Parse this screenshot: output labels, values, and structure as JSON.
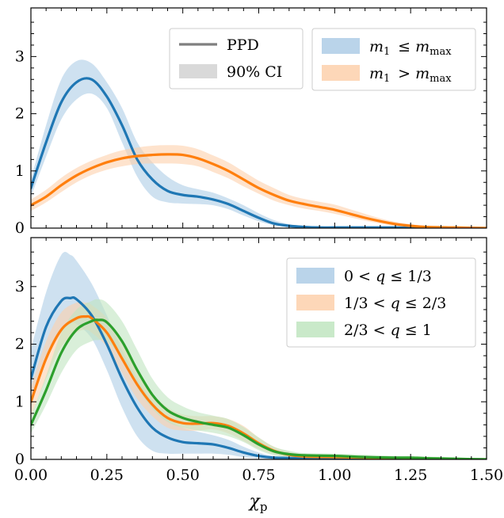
{
  "chart_data": [
    {
      "type": "line",
      "panel": "top",
      "xlim": [
        0,
        1.5
      ],
      "ylim": [
        0,
        3.85
      ],
      "yticks": [
        {
          "v": 0,
          "label": "0"
        },
        {
          "v": 1,
          "label": "1"
        },
        {
          "v": 2,
          "label": "2"
        },
        {
          "v": 3,
          "label": "3"
        }
      ],
      "style_legend": {
        "placement": "top-center",
        "entries": [
          {
            "kind": "line",
            "label": "PPD",
            "color": "#7f7f7f"
          },
          {
            "kind": "band",
            "label": "90% CI",
            "color": "#d9d9d9"
          }
        ]
      },
      "series_legend": {
        "placement": "top-right"
      },
      "series": [
        {
          "name": "m₁ ≤ m_max",
          "color": "#1f77b4",
          "band_color": "#aecde6",
          "x": [
            0,
            0.05,
            0.1,
            0.15,
            0.2,
            0.25,
            0.3,
            0.35,
            0.4,
            0.45,
            0.5,
            0.55,
            0.6,
            0.65,
            0.7,
            0.75,
            0.8,
            0.85,
            0.9,
            0.95,
            1.0,
            1.1,
            1.2,
            1.3,
            1.4,
            1.5
          ],
          "y": [
            0.7,
            1.5,
            2.2,
            2.55,
            2.6,
            2.3,
            1.8,
            1.2,
            0.85,
            0.65,
            0.58,
            0.55,
            0.5,
            0.42,
            0.3,
            0.18,
            0.08,
            0.04,
            0.02,
            0.01,
            0.01,
            0.01,
            0.01,
            0.0,
            0.0,
            0.0
          ],
          "lo": [
            0.55,
            1.25,
            1.9,
            2.25,
            2.35,
            2.1,
            1.5,
            0.9,
            0.55,
            0.45,
            0.43,
            0.42,
            0.4,
            0.33,
            0.22,
            0.12,
            0.05,
            0.02,
            0.01,
            0.0,
            0.0,
            0.0,
            0.0,
            0.0,
            0.0,
            0.0
          ],
          "hi": [
            0.85,
            1.8,
            2.6,
            2.92,
            2.88,
            2.55,
            2.1,
            1.5,
            1.15,
            0.9,
            0.75,
            0.68,
            0.62,
            0.52,
            0.4,
            0.26,
            0.14,
            0.07,
            0.04,
            0.03,
            0.02,
            0.02,
            0.02,
            0.01,
            0.01,
            0.0
          ]
        },
        {
          "name": "m₁ > m_max",
          "color": "#ff7f0e",
          "band_color": "#fdd0ab",
          "x": [
            0,
            0.05,
            0.1,
            0.15,
            0.2,
            0.25,
            0.3,
            0.35,
            0.4,
            0.45,
            0.5,
            0.55,
            0.6,
            0.65,
            0.7,
            0.75,
            0.8,
            0.85,
            0.9,
            0.95,
            1.0,
            1.05,
            1.1,
            1.15,
            1.2,
            1.25,
            1.3,
            1.4,
            1.5
          ],
          "y": [
            0.4,
            0.55,
            0.75,
            0.92,
            1.05,
            1.15,
            1.22,
            1.26,
            1.28,
            1.29,
            1.28,
            1.22,
            1.12,
            1.0,
            0.85,
            0.7,
            0.58,
            0.48,
            0.42,
            0.37,
            0.32,
            0.25,
            0.18,
            0.12,
            0.07,
            0.04,
            0.02,
            0.01,
            0.0
          ],
          "lo": [
            0.3,
            0.45,
            0.63,
            0.8,
            0.93,
            1.02,
            1.08,
            1.12,
            1.13,
            1.13,
            1.12,
            1.08,
            0.98,
            0.87,
            0.73,
            0.6,
            0.48,
            0.4,
            0.34,
            0.3,
            0.25,
            0.19,
            0.13,
            0.08,
            0.04,
            0.02,
            0.01,
            0.0,
            0.0
          ],
          "hi": [
            0.5,
            0.67,
            0.88,
            1.05,
            1.18,
            1.28,
            1.36,
            1.41,
            1.44,
            1.45,
            1.44,
            1.38,
            1.27,
            1.15,
            0.99,
            0.83,
            0.7,
            0.58,
            0.51,
            0.46,
            0.41,
            0.33,
            0.25,
            0.17,
            0.11,
            0.07,
            0.04,
            0.02,
            0.01
          ]
        }
      ]
    },
    {
      "type": "line",
      "panel": "bottom",
      "xlim": [
        0,
        1.5
      ],
      "ylim": [
        0,
        3.85
      ],
      "xlabel": "χp",
      "xticks": [
        {
          "v": 0,
          "label": "0.00"
        },
        {
          "v": 0.25,
          "label": "0.25"
        },
        {
          "v": 0.5,
          "label": "0.50"
        },
        {
          "v": 0.75,
          "label": "0.75"
        },
        {
          "v": 1.0,
          "label": "1.00"
        },
        {
          "v": 1.25,
          "label": "1.25"
        },
        {
          "v": 1.5,
          "label": "1.50"
        }
      ],
      "yticks": [
        {
          "v": 0,
          "label": "0"
        },
        {
          "v": 1,
          "label": "1"
        },
        {
          "v": 2,
          "label": "2"
        },
        {
          "v": 3,
          "label": "3"
        }
      ],
      "series_legend": {
        "placement": "top-right"
      },
      "series": [
        {
          "name": "0 < q ≤ 1/3",
          "color": "#1f77b4",
          "band_color": "#aecde6",
          "x": [
            0,
            0.05,
            0.1,
            0.13,
            0.15,
            0.2,
            0.25,
            0.3,
            0.35,
            0.4,
            0.45,
            0.5,
            0.55,
            0.6,
            0.65,
            0.7,
            0.75,
            0.8,
            0.9,
            1.0,
            1.1,
            1.2,
            1.3,
            1.4,
            1.5
          ],
          "y": [
            1.4,
            2.3,
            2.75,
            2.8,
            2.78,
            2.5,
            2.0,
            1.4,
            0.9,
            0.55,
            0.38,
            0.3,
            0.28,
            0.26,
            0.2,
            0.12,
            0.06,
            0.03,
            0.02,
            0.02,
            0.01,
            0.01,
            0.0,
            0.0,
            0.0
          ],
          "lo": [
            0.9,
            1.7,
            2.2,
            2.35,
            2.35,
            2.1,
            1.55,
            0.9,
            0.4,
            0.15,
            0.1,
            0.1,
            0.1,
            0.1,
            0.08,
            0.04,
            0.02,
            0.01,
            0.0,
            0.0,
            0.0,
            0.0,
            0.0,
            0.0,
            0.0
          ],
          "hi": [
            1.9,
            2.9,
            3.55,
            3.55,
            3.45,
            3.05,
            2.5,
            1.9,
            1.4,
            1.0,
            0.7,
            0.55,
            0.48,
            0.42,
            0.34,
            0.22,
            0.12,
            0.06,
            0.04,
            0.04,
            0.03,
            0.02,
            0.01,
            0.0,
            0.0
          ]
        },
        {
          "name": "1/3 < q ≤ 2/3",
          "color": "#ff7f0e",
          "band_color": "#fdd0ab",
          "x": [
            0,
            0.05,
            0.1,
            0.15,
            0.18,
            0.2,
            0.25,
            0.3,
            0.35,
            0.4,
            0.45,
            0.5,
            0.55,
            0.6,
            0.65,
            0.7,
            0.75,
            0.8,
            0.85,
            0.9,
            1.0,
            1.1,
            1.2,
            1.3,
            1.4,
            1.5
          ],
          "y": [
            1.0,
            1.75,
            2.25,
            2.45,
            2.48,
            2.45,
            2.2,
            1.75,
            1.3,
            0.95,
            0.72,
            0.63,
            0.62,
            0.63,
            0.58,
            0.45,
            0.28,
            0.15,
            0.08,
            0.05,
            0.04,
            0.03,
            0.02,
            0.01,
            0.0,
            0.0
          ],
          "lo": [
            0.75,
            1.4,
            1.95,
            2.2,
            2.25,
            2.2,
            1.95,
            1.5,
            1.05,
            0.75,
            0.55,
            0.5,
            0.5,
            0.52,
            0.45,
            0.32,
            0.18,
            0.09,
            0.04,
            0.02,
            0.01,
            0.01,
            0.0,
            0.0,
            0.0,
            0.0
          ],
          "hi": [
            1.25,
            2.05,
            2.55,
            2.72,
            2.72,
            2.68,
            2.45,
            2.0,
            1.55,
            1.15,
            0.9,
            0.78,
            0.75,
            0.75,
            0.7,
            0.58,
            0.38,
            0.22,
            0.13,
            0.09,
            0.07,
            0.05,
            0.04,
            0.02,
            0.01,
            0.0
          ]
        },
        {
          "name": "2/3 < q ≤ 1",
          "color": "#2ca02c",
          "band_color": "#bfe5bf",
          "x": [
            0,
            0.05,
            0.1,
            0.15,
            0.2,
            0.22,
            0.25,
            0.3,
            0.35,
            0.4,
            0.45,
            0.5,
            0.55,
            0.6,
            0.65,
            0.7,
            0.75,
            0.8,
            0.85,
            0.9,
            1.0,
            1.1,
            1.2,
            1.25,
            1.3,
            1.4,
            1.5
          ],
          "y": [
            0.6,
            1.2,
            1.85,
            2.25,
            2.4,
            2.42,
            2.38,
            2.05,
            1.55,
            1.12,
            0.85,
            0.72,
            0.65,
            0.6,
            0.55,
            0.42,
            0.26,
            0.14,
            0.09,
            0.07,
            0.06,
            0.04,
            0.03,
            0.03,
            0.02,
            0.01,
            0.0
          ],
          "lo": [
            0.45,
            0.95,
            1.5,
            1.9,
            2.05,
            2.07,
            2.05,
            1.75,
            1.25,
            0.88,
            0.65,
            0.55,
            0.5,
            0.46,
            0.4,
            0.3,
            0.16,
            0.07,
            0.04,
            0.03,
            0.02,
            0.01,
            0.01,
            0.01,
            0.0,
            0.0,
            0.0
          ],
          "hi": [
            0.75,
            1.45,
            2.2,
            2.6,
            2.75,
            2.78,
            2.72,
            2.4,
            1.9,
            1.4,
            1.08,
            0.92,
            0.82,
            0.76,
            0.7,
            0.56,
            0.38,
            0.22,
            0.15,
            0.11,
            0.1,
            0.08,
            0.06,
            0.06,
            0.05,
            0.03,
            0.01
          ]
        }
      ]
    }
  ]
}
